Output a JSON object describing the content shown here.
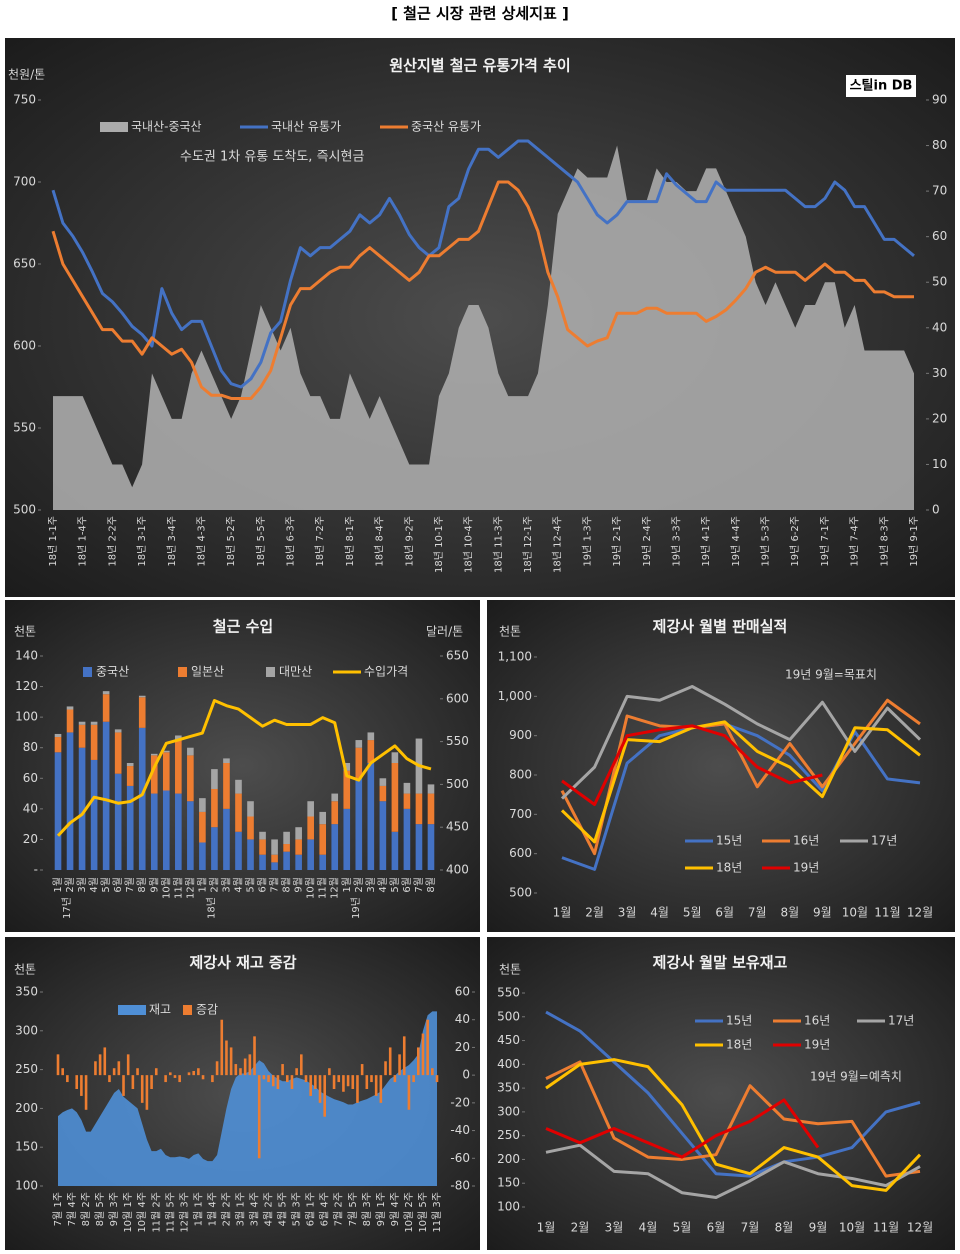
{
  "header": {
    "title": "[ 철근 시장 관련 상세지표 ]"
  },
  "chart_data": [
    {
      "type": "line",
      "title": "원산지별 철근 유통가격 추이",
      "subtitle": "수도권 1차 유통 도착도, 즉시현금",
      "y_label": "천원/톤",
      "logo": "스틸in DB",
      "categories": [
        "18년 1-1주",
        null,
        null,
        "18년 1-4주",
        null,
        null,
        "18년 2-2주",
        null,
        null,
        "18년 3-1주",
        null,
        null,
        "18년 3-4주",
        null,
        null,
        "18년 4-3주",
        null,
        null,
        "18년 5-2주",
        null,
        null,
        "18년 5-5주",
        null,
        null,
        "18년 6-3주",
        null,
        null,
        "18년 7-2주",
        null,
        null,
        "18년 8-1주",
        null,
        null,
        "18년 8-4주",
        null,
        null,
        "18년 9-2주",
        null,
        null,
        "18년 10-1주",
        null,
        null,
        "18년 10-4주",
        null,
        null,
        "18년 11-3주",
        null,
        null,
        "18년 12-1주",
        null,
        null,
        "18년 12-4주",
        null,
        null,
        "19년 1-3주",
        null,
        null,
        "19년 2-1주",
        null,
        null,
        "19년 2-4주",
        null,
        null,
        "19년 3-3주",
        null,
        null,
        "19년 4-1주",
        null,
        null,
        "19년 4-4주",
        null,
        null,
        "19년 5-3주",
        null,
        null,
        "19년 6-2주",
        null,
        null,
        "19년 7-1주",
        null,
        null,
        "19년 7-4주",
        null,
        null,
        "19년 8-3주",
        null,
        null,
        "19년 9-1주"
      ],
      "series": [
        {
          "name": "국내산-중국산",
          "type": "area",
          "axis": "y2",
          "color": "#ababab",
          "values": [
            25,
            25,
            25,
            25,
            20,
            15,
            10,
            10,
            5,
            10,
            30,
            25,
            20,
            20,
            30,
            35,
            30,
            25,
            20,
            25,
            35,
            45,
            40,
            35,
            40,
            30,
            25,
            25,
            20,
            20,
            30,
            25,
            20,
            25,
            20,
            15,
            10,
            10,
            10,
            25,
            30,
            40,
            45,
            45,
            40,
            30,
            25,
            25,
            25,
            30,
            45,
            65,
            70,
            75,
            73,
            73,
            73,
            80,
            68,
            68,
            68,
            75,
            72,
            72,
            70,
            70,
            75,
            75,
            70,
            65,
            60,
            50,
            45,
            50,
            45,
            40,
            45,
            45,
            50,
            50,
            40,
            45,
            35,
            35,
            35,
            35,
            35,
            30
          ]
        },
        {
          "name": "국내산 유통가",
          "color": "#4472c4",
          "values": [
            695,
            675,
            667,
            657,
            645,
            632,
            627,
            620,
            612,
            607,
            600,
            635,
            620,
            610,
            615,
            615,
            600,
            585,
            577,
            575,
            580,
            590,
            608,
            615,
            640,
            660,
            655,
            660,
            660,
            665,
            670,
            680,
            675,
            680,
            690,
            680,
            668,
            660,
            655,
            660,
            685,
            690,
            708,
            720,
            720,
            715,
            720,
            725,
            725,
            720,
            715,
            710,
            705,
            700,
            690,
            680,
            675,
            680,
            688,
            688,
            688,
            688,
            705,
            698,
            693,
            688,
            688,
            700,
            695,
            695,
            695,
            695,
            695,
            695,
            695,
            690,
            685,
            685,
            690,
            700,
            695,
            685,
            685,
            675,
            665,
            665,
            660,
            655
          ]
        },
        {
          "name": "중국산 유통가",
          "color": "#ed7d31",
          "values": [
            670,
            650,
            640,
            630,
            620,
            610,
            610,
            603,
            603,
            595,
            605,
            600,
            595,
            598,
            590,
            575,
            570,
            570,
            568,
            568,
            568,
            575,
            585,
            605,
            625,
            635,
            635,
            640,
            645,
            648,
            648,
            655,
            660,
            655,
            650,
            645,
            640,
            645,
            655,
            655,
            660,
            665,
            665,
            670,
            685,
            700,
            700,
            695,
            685,
            670,
            645,
            630,
            610,
            605,
            600,
            603,
            605,
            620,
            620,
            620,
            623,
            623,
            620,
            620,
            620,
            620,
            615,
            618,
            622,
            628,
            635,
            645,
            648,
            645,
            645,
            645,
            640,
            645,
            650,
            645,
            645,
            640,
            640,
            633,
            633,
            630,
            630,
            630
          ]
        }
      ],
      "ylim": [
        500,
        750
      ],
      "yticks": [
        500,
        550,
        600,
        650,
        700,
        750
      ],
      "y2lim": [
        0,
        90
      ],
      "y2ticks": [
        0,
        10,
        20,
        30,
        40,
        50,
        60,
        70,
        80,
        90
      ]
    },
    {
      "type": "bar",
      "stacked": true,
      "title": "철근 수입",
      "y_label": "천톤",
      "y2_label": "달러/톤",
      "categories": [
        "1월",
        "2월",
        "3월",
        "4월",
        "5월",
        "6월",
        "7월",
        "8월",
        "9월",
        "10월",
        "11월",
        "12월",
        "1월",
        "2월",
        "3월",
        "4월",
        "5월",
        "6월",
        "7월",
        "8월",
        "9월",
        "10월",
        "11월",
        "12월",
        "1월",
        "2월",
        "3월",
        "4월",
        "5월",
        "6월",
        "7월",
        "8월"
      ],
      "category_groups": [
        "17년",
        "18년",
        "19년"
      ],
      "series": [
        {
          "name": "중국산",
          "color": "#4472c4",
          "values": [
            77,
            90,
            80,
            72,
            97,
            63,
            55,
            93,
            50,
            52,
            50,
            45,
            18,
            28,
            40,
            25,
            20,
            10,
            5,
            12,
            10,
            20,
            10,
            30,
            40,
            60,
            70,
            45,
            25,
            40,
            30,
            30
          ]
        },
        {
          "name": "일본산",
          "color": "#ed7d31",
          "values": [
            10,
            15,
            15,
            23,
            18,
            27,
            13,
            20,
            25,
            25,
            35,
            30,
            20,
            25,
            30,
            25,
            15,
            10,
            5,
            5,
            10,
            15,
            20,
            15,
            25,
            20,
            15,
            10,
            45,
            10,
            20,
            20
          ]
        },
        {
          "name": "대만산",
          "color": "#a5a5a5",
          "values": [
            2,
            2,
            2,
            2,
            2,
            2,
            2,
            1,
            1,
            1,
            3,
            5,
            9,
            13,
            3,
            9,
            10,
            5,
            10,
            8,
            8,
            10,
            8,
            5,
            5,
            5,
            5,
            5,
            7,
            7,
            36,
            6
          ]
        },
        {
          "name": "수입가격",
          "type": "line",
          "axis": "y2",
          "color": "#ffc000",
          "values": [
            440,
            455,
            465,
            485,
            482,
            478,
            480,
            488,
            520,
            548,
            552,
            556,
            560,
            598,
            592,
            588,
            578,
            568,
            575,
            570,
            570,
            570,
            578,
            572,
            510,
            505,
            525,
            535,
            545,
            530,
            522,
            518
          ]
        }
      ],
      "ylim": [
        0,
        140
      ],
      "yticks": [
        {
          "value": 0,
          "label": "-"
        },
        20,
        40,
        60,
        80,
        100,
        120,
        140
      ],
      "y2lim": [
        400,
        650
      ],
      "y2ticks": [
        400,
        450,
        500,
        550,
        600,
        650
      ]
    },
    {
      "type": "line",
      "title": "제강사 월별 판매실적",
      "y_label": "천톤",
      "annotation": "19년 9월=목표치",
      "categories": [
        "1월",
        "2월",
        "3월",
        "4월",
        "5월",
        "6월",
        "7월",
        "8월",
        "9월",
        "10월",
        "11월",
        "12월"
      ],
      "series": [
        {
          "name": "15년",
          "color": "#4472c4",
          "values": [
            590,
            560,
            830,
            900,
            920,
            930,
            900,
            850,
            760,
            910,
            790,
            780
          ]
        },
        {
          "name": "16년",
          "color": "#ed7d31",
          "values": [
            760,
            600,
            950,
            925,
            920,
            930,
            770,
            880,
            770,
            880,
            990,
            930
          ]
        },
        {
          "name": "17년",
          "color": "#a5a5a5",
          "values": [
            740,
            820,
            1000,
            990,
            1025,
            980,
            930,
            890,
            985,
            860,
            970,
            890
          ]
        },
        {
          "name": "18년",
          "color": "#ffc000",
          "values": [
            710,
            630,
            890,
            885,
            920,
            935,
            860,
            820,
            745,
            920,
            915,
            850
          ]
        },
        {
          "name": "19년",
          "color": "#e00000",
          "values": [
            785,
            725,
            900,
            915,
            925,
            900,
            820,
            780,
            800,
            null,
            null,
            null
          ]
        }
      ],
      "ylim": [
        500,
        1100
      ],
      "yticks": [
        500,
        600,
        700,
        800,
        900,
        {
          "value": 1000,
          "label": "1,000"
        },
        {
          "value": 1100,
          "label": "1,100"
        }
      ]
    },
    {
      "type": "bar",
      "title": "제강사 재고 증감",
      "y_label": "천톤",
      "categories": [
        "7월 1주",
        null,
        null,
        "7월 4주",
        null,
        null,
        "8월 2주",
        null,
        null,
        "8월 5주",
        null,
        null,
        "9월 3주",
        null,
        null,
        "10월 1주",
        null,
        null,
        "10월 4주",
        null,
        null,
        "11월 2주",
        null,
        null,
        "11월 5주",
        null,
        null,
        "12월 3주",
        null,
        null,
        "1월 1주",
        null,
        null,
        "1월 4주",
        null,
        null,
        "2월 2주",
        null,
        null,
        "3월 1주",
        null,
        null,
        "3월 4주",
        null,
        null,
        "4월 2주",
        null,
        null,
        "4월 5주",
        null,
        null,
        "5월 3주",
        null,
        null,
        "6월 1주",
        null,
        null,
        "6월 4주",
        null,
        null,
        "7월 2주",
        null,
        null,
        "7월 5주",
        null,
        null,
        "8월 3주",
        null,
        null,
        "9월 1주",
        null,
        null,
        "9월 4주",
        null,
        null,
        "10월 2주",
        null,
        null,
        "10월 5주",
        null,
        null,
        "11월 3주"
      ],
      "series": [
        {
          "name": "재고",
          "type": "area",
          "color": "#4f8fd6",
          "values": [
            190,
            195,
            198,
            200,
            195,
            185,
            170,
            170,
            180,
            190,
            200,
            210,
            220,
            225,
            215,
            210,
            205,
            200,
            180,
            160,
            145,
            145,
            148,
            140,
            137,
            137,
            138,
            137,
            135,
            140,
            142,
            135,
            132,
            132,
            140,
            170,
            200,
            225,
            240,
            245,
            245,
            248,
            255,
            262,
            258,
            248,
            242,
            238,
            235,
            235,
            238,
            240,
            238,
            236,
            232,
            228,
            222,
            218,
            215,
            212,
            210,
            208,
            205,
            205,
            208,
            210,
            212,
            215,
            218,
            222,
            230,
            238,
            242,
            248,
            252,
            256,
            262,
            270,
            300,
            320,
            325,
            325
          ]
        },
        {
          "name": "증감",
          "axis": "y2",
          "color": "#ed7d31",
          "values": [
            15,
            5,
            -5,
            0,
            -10,
            -15,
            -25,
            0,
            10,
            15,
            20,
            -5,
            5,
            10,
            -15,
            15,
            -10,
            5,
            -20,
            -25,
            -10,
            5,
            0,
            -5,
            2,
            -2,
            -5,
            0,
            2,
            3,
            5,
            -3,
            0,
            -5,
            10,
            40,
            25,
            20,
            8,
            5,
            12,
            15,
            28,
            -60,
            -3,
            -5,
            -8,
            -10,
            8,
            -5,
            -10,
            5,
            15,
            -5,
            -15,
            -10,
            -20,
            -30,
            5,
            -10,
            -5,
            -12,
            -8,
            -10,
            -20,
            8,
            -10,
            -5,
            -15,
            -20,
            10,
            20,
            -5,
            15,
            28,
            -25,
            -5,
            20,
            30,
            40,
            5,
            -5
          ]
        }
      ],
      "ylim": [
        100,
        350
      ],
      "yticks": [
        100,
        150,
        200,
        250,
        300,
        350
      ],
      "y2lim": [
        -80,
        60
      ],
      "y2ticks": [
        -80,
        -60,
        -40,
        -20,
        0,
        20,
        40,
        60
      ]
    },
    {
      "type": "line",
      "title": "제강사 월말 보유재고",
      "y_label": "천톤",
      "annotation": "19년 9월=예측치",
      "categories": [
        "1월",
        "2월",
        "3월",
        "4월",
        "5월",
        "6월",
        "7월",
        "8월",
        "9월",
        "10월",
        "11월",
        "12월"
      ],
      "series": [
        {
          "name": "15년",
          "color": "#4472c4",
          "values": [
            510,
            470,
            405,
            340,
            255,
            170,
            165,
            195,
            205,
            225,
            300,
            320
          ]
        },
        {
          "name": "16년",
          "color": "#ed7d31",
          "values": [
            370,
            405,
            245,
            205,
            200,
            210,
            355,
            285,
            275,
            280,
            165,
            175
          ]
        },
        {
          "name": "17년",
          "color": "#a5a5a5",
          "values": [
            215,
            230,
            175,
            170,
            130,
            120,
            155,
            195,
            170,
            160,
            145,
            185
          ]
        },
        {
          "name": "18년",
          "color": "#ffc000",
          "values": [
            350,
            400,
            410,
            395,
            315,
            190,
            170,
            225,
            205,
            145,
            135,
            210
          ]
        },
        {
          "name": "19년",
          "color": "#e00000",
          "values": [
            265,
            235,
            265,
            235,
            205,
            250,
            280,
            325,
            225,
            null,
            null,
            null
          ]
        }
      ],
      "ylim": [
        100,
        550
      ],
      "yticks": [
        100,
        150,
        200,
        250,
        300,
        350,
        400,
        450,
        500,
        550
      ]
    }
  ]
}
